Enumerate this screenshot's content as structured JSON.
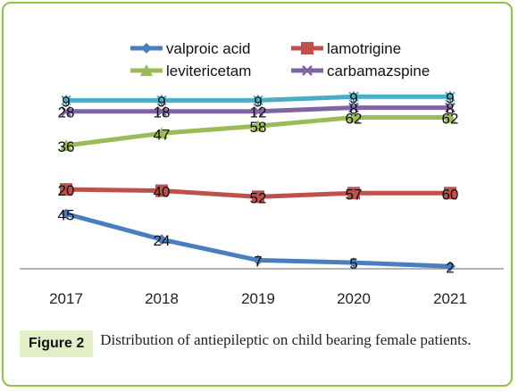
{
  "figure": {
    "label": "Figure 2",
    "caption": "Distribution of antiepileptic on child bearing female patients."
  },
  "chart_data": {
    "type": "line",
    "categories": [
      "2017",
      "2018",
      "2019",
      "2020",
      "2021"
    ],
    "series": [
      {
        "name": "valproic acid",
        "color": "#4a7ebf",
        "marker": "diamond",
        "values": [
          45,
          24,
          7,
          5,
          2
        ],
        "labels": [
          "45",
          "24",
          "7",
          "5",
          "2"
        ]
      },
      {
        "name": "lamotrigine",
        "color": "#c0504d",
        "marker": "square",
        "values": [
          20,
          40,
          52,
          57,
          60
        ],
        "labels": [
          "20",
          "40",
          "52",
          "57",
          "60"
        ]
      },
      {
        "name": "levitericetam",
        "color": "#9bbb59",
        "marker": "triangle",
        "values": [
          36,
          47,
          58,
          62,
          62
        ],
        "labels": [
          "36",
          "47",
          "58",
          "62",
          "62"
        ]
      },
      {
        "name": "carbamazspine",
        "color": "#8064a2",
        "marker": "x",
        "values": [
          28,
          18,
          12,
          8,
          8
        ],
        "labels": [
          "28",
          "18",
          "12",
          "8",
          "8"
        ]
      },
      {
        "name": "",
        "color": "#4bacc6",
        "marker": "star",
        "values": [
          9,
          9,
          9,
          9,
          9
        ],
        "labels": [
          "9",
          "9",
          "9",
          "9",
          "9"
        ]
      }
    ],
    "legend_position": "top",
    "grid": false,
    "note": "stacked line chart"
  }
}
